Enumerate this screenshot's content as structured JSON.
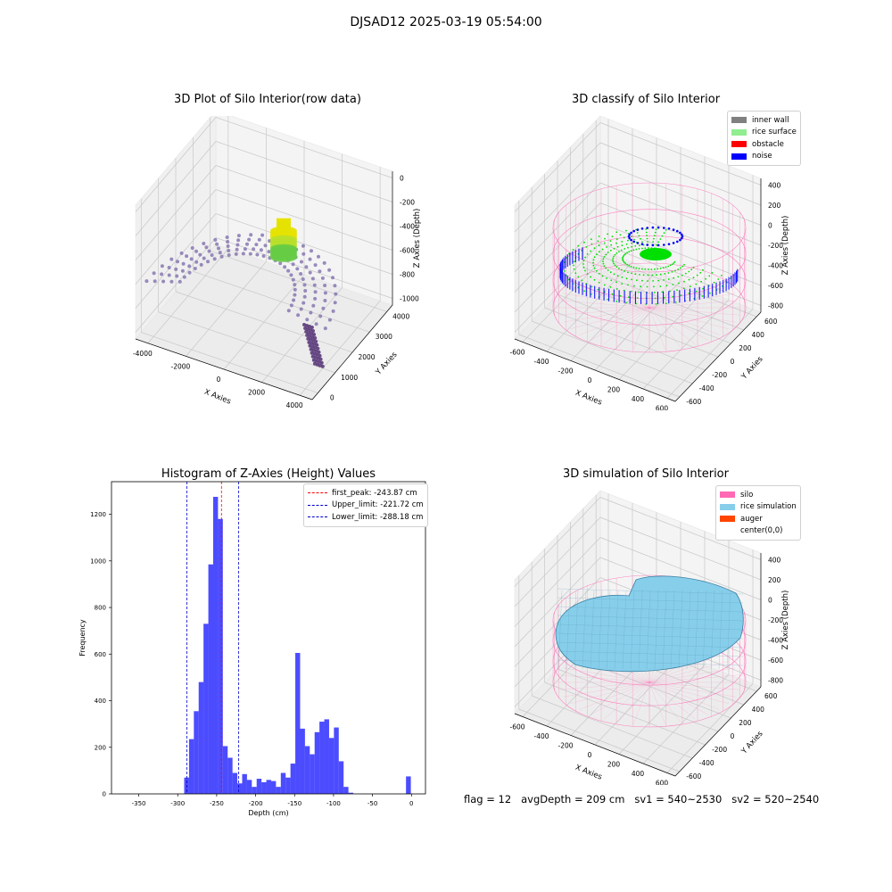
{
  "figure": {
    "suptitle": "DJSAD12 2025-03-19 05:54:00",
    "footer": "flag = 12   avgDepth = 209 cm   sv1 = 540~2530   sv2 = 520~2540"
  },
  "panels": {
    "raw": {
      "title": "3D Plot of Silo Interior(row data)",
      "xlabel": "X Axies",
      "ylabel": "Y Axies",
      "zlabel": "Z Axies (Depth)",
      "xticks": [
        "-4000",
        "-2000",
        "0",
        "2000",
        "4000"
      ],
      "yticks": [
        "0",
        "1000",
        "2000",
        "3000",
        "4000"
      ],
      "zticks": [
        "0",
        "-200",
        "-400",
        "-600",
        "-800",
        "-1000"
      ]
    },
    "classify": {
      "title": "3D classify of Silo Interior",
      "xlabel": "X Axies",
      "ylabel": "Y Axies",
      "zlabel": "Z Axies (Depth)",
      "xticks": [
        "-600",
        "-400",
        "-200",
        "0",
        "200",
        "400",
        "600"
      ],
      "yticks": [
        "-600",
        "-400",
        "-200",
        "0",
        "200",
        "400",
        "600"
      ],
      "zticks": [
        "400",
        "200",
        "0",
        "-200",
        "-400",
        "-600",
        "-800"
      ],
      "legend": [
        {
          "label": "inner wall",
          "color": "#808080"
        },
        {
          "label": "rice surface",
          "color": "#90ee90"
        },
        {
          "label": "obstacle",
          "color": "#ff0000"
        },
        {
          "label": "noise",
          "color": "#0000ff"
        }
      ]
    },
    "simulation": {
      "title": "3D simulation of Silo Interior",
      "xlabel": "X Axies",
      "ylabel": "Y Axies",
      "zlabel": "Z Axies (Depth)",
      "xticks": [
        "-600",
        "-400",
        "-200",
        "0",
        "200",
        "400",
        "600"
      ],
      "yticks": [
        "-600",
        "-400",
        "-200",
        "0",
        "200",
        "400",
        "600"
      ],
      "zticks": [
        "400",
        "200",
        "0",
        "-200",
        "-400",
        "-600",
        "-800"
      ],
      "legend": [
        {
          "label": "silo",
          "color": "#ff69b4"
        },
        {
          "label": "rice simulation",
          "color": "#87ceeb"
        },
        {
          "label": "auger",
          "color": "#ff4500"
        },
        {
          "label": "center(0,0)",
          "color": "#ffffff"
        }
      ]
    }
  },
  "chart_data": {
    "type": "bar",
    "title": "Histogram of Z-Axies (Height) Values",
    "xlabel": "Depth (cm)",
    "ylabel": "Frequency",
    "xlim": [
      -385,
      18
    ],
    "ylim": [
      0,
      1340
    ],
    "xticks": [
      -350,
      -300,
      -250,
      -200,
      -150,
      -100,
      -50,
      0
    ],
    "yticks": [
      0,
      200,
      400,
      600,
      800,
      1000,
      1200
    ],
    "bar_color": "#0000ff",
    "bin_width": 6.2,
    "bins": [
      {
        "x": -291.7,
        "v": 70
      },
      {
        "x": -285.5,
        "v": 235
      },
      {
        "x": -279.3,
        "v": 355
      },
      {
        "x": -273.1,
        "v": 480
      },
      {
        "x": -266.9,
        "v": 730
      },
      {
        "x": -260.7,
        "v": 985
      },
      {
        "x": -254.5,
        "v": 1275
      },
      {
        "x": -248.3,
        "v": 1180
      },
      {
        "x": -242.1,
        "v": 205
      },
      {
        "x": -235.9,
        "v": 155
      },
      {
        "x": -229.7,
        "v": 90
      },
      {
        "x": -223.5,
        "v": 45
      },
      {
        "x": -217.3,
        "v": 85
      },
      {
        "x": -211.1,
        "v": 60
      },
      {
        "x": -204.9,
        "v": 30
      },
      {
        "x": -198.7,
        "v": 65
      },
      {
        "x": -192.5,
        "v": 50
      },
      {
        "x": -186.3,
        "v": 60
      },
      {
        "x": -180.1,
        "v": 55
      },
      {
        "x": -173.9,
        "v": 30
      },
      {
        "x": -167.7,
        "v": 90
      },
      {
        "x": -161.5,
        "v": 70
      },
      {
        "x": -155.3,
        "v": 130
      },
      {
        "x": -149.1,
        "v": 605
      },
      {
        "x": -142.9,
        "v": 280
      },
      {
        "x": -136.7,
        "v": 205
      },
      {
        "x": -130.5,
        "v": 170
      },
      {
        "x": -124.3,
        "v": 265
      },
      {
        "x": -118.1,
        "v": 310
      },
      {
        "x": -111.9,
        "v": 320
      },
      {
        "x": -105.7,
        "v": 240
      },
      {
        "x": -99.5,
        "v": 285
      },
      {
        "x": -93.3,
        "v": 140
      },
      {
        "x": -87.1,
        "v": 30
      },
      {
        "x": -80.9,
        "v": 5
      },
      {
        "x": -7.0,
        "v": 75
      }
    ],
    "lines": [
      {
        "label": "first_peak: -243.87 cm",
        "x": -243.87,
        "color": "#ff0000"
      },
      {
        "label": "Upper_limit: -221.72 cm",
        "x": -221.72,
        "color": "#0000cc"
      },
      {
        "label": "Lower_limit: -288.18 cm",
        "x": -288.18,
        "color": "#0000cc"
      }
    ]
  }
}
